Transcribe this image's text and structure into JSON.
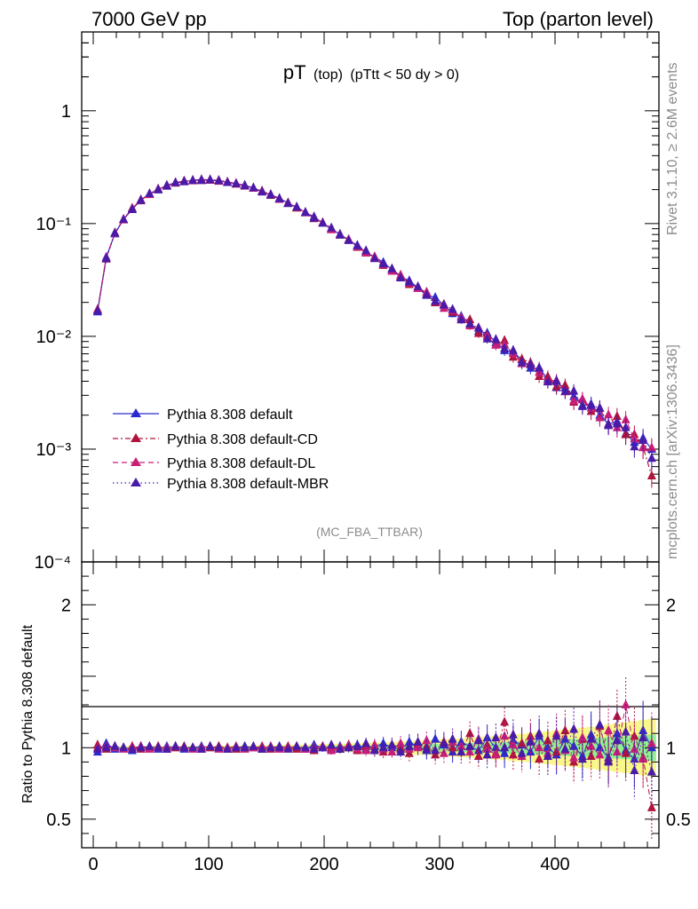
{
  "header": {
    "left": "7000 GeV pp",
    "right": "Top (parton level)"
  },
  "side_text": {
    "rivet": "Rivet 3.1.10, ≥ 2.6M events",
    "mcplots": "mcplots.cern.ch [arXiv:1306.3436]"
  },
  "chart_data": {
    "type": "line",
    "title_main": "pT",
    "title_sub": "(top)",
    "title_cut": "(pTtt < 50 dy > 0)",
    "analysis": "(MC_FBA_TTBAR)",
    "xlabel": "",
    "ylabel_ratio": "Ratio to Pythia 8.308 default",
    "xlim": [
      -10,
      490
    ],
    "ylim": [
      0.0001,
      5
    ],
    "ylog": true,
    "ratio_ylim": [
      0.3,
      2.3
    ],
    "x_ticks": [
      "0",
      "100",
      "200",
      "300",
      "400"
    ],
    "y_ticks": [
      "1",
      "10⁻¹",
      "10⁻²",
      "10⁻³",
      "10⁻⁴"
    ],
    "ratio_ticks": [
      "2",
      "1",
      "0.5"
    ],
    "x_bin_width": 7.5,
    "x_first": 3.75,
    "reference": [
      0.017,
      0.049,
      0.082,
      0.109,
      0.136,
      0.161,
      0.183,
      0.201,
      0.217,
      0.229,
      0.237,
      0.242,
      0.244,
      0.243,
      0.24,
      0.234,
      0.226,
      0.217,
      0.206,
      0.193,
      0.18,
      0.166,
      0.152,
      0.139,
      0.126,
      0.113,
      0.101,
      0.09,
      0.08,
      0.071,
      0.063,
      0.056,
      0.05,
      0.044,
      0.039,
      0.034,
      0.03,
      0.0266,
      0.0236,
      0.0209,
      0.0185,
      0.0164,
      0.0145,
      0.0128,
      0.0113,
      0.01,
      0.0088,
      0.0078,
      0.0069,
      0.0061,
      0.0054,
      0.0048,
      0.0042,
      0.0037,
      0.0033,
      0.0029,
      0.0026,
      0.0023,
      0.002,
      0.0018,
      0.0016,
      0.0014,
      0.00125,
      0.00112,
      0.001
    ],
    "series": [
      {
        "name": "Pythia 8.308 default",
        "color": "#2a2acf",
        "dash": "",
        "ratio": [
          0.97,
          1.03,
          0.99,
          1.0,
          0.98,
          1.01,
          1.0,
          0.99,
          1.01,
          1.0,
          0.99,
          1.0,
          1.01,
          1.0,
          1.0,
          0.99,
          1.0,
          1.01,
          1.0,
          0.99,
          1.0,
          1.01,
          1.0,
          1.0,
          0.99,
          1.02,
          1.0,
          0.99,
          1.01,
          1.0,
          1.02,
          0.99,
          1.01,
          1.03,
          1.0,
          0.99,
          1.04,
          1.01,
          0.98,
          1.06,
          1.02,
          0.97,
          1.04,
          1.01,
          0.98,
          1.07,
          1.0,
          0.96,
          1.05,
          1.02,
          0.97,
          1.08,
          1.0,
          0.95,
          1.06,
          1.01,
          0.94,
          1.09,
          1.0,
          0.93,
          1.1,
          0.98,
          0.92,
          1.12,
          1.0
        ]
      },
      {
        "name": "Pythia 8.308 default-CD",
        "color": "#b0143c",
        "dash": "6 3 2 3",
        "ratio": [
          1.02,
          0.99,
          1.01,
          1.0,
          1.01,
          0.99,
          1.0,
          1.01,
          0.99,
          1.0,
          1.01,
          1.0,
          0.99,
          1.0,
          1.01,
          1.0,
          0.99,
          1.0,
          1.0,
          1.01,
          0.99,
          1.0,
          1.01,
          0.99,
          1.0,
          0.98,
          1.01,
          1.0,
          0.99,
          1.02,
          0.98,
          1.01,
          0.99,
          0.97,
          1.02,
          1.0,
          0.96,
          1.03,
          1.01,
          0.95,
          1.04,
          1.0,
          0.97,
          1.1,
          0.94,
          1.02,
          0.96,
          1.18,
          0.95,
          1.03,
          1.08,
          0.92,
          1.05,
          0.97,
          1.12,
          0.9,
          1.06,
          0.94,
          1.15,
          0.91,
          1.22,
          0.96,
          1.08,
          0.93,
          0.58
        ]
      },
      {
        "name": "Pythia 8.308 default-DL",
        "color": "#c81e78",
        "dash": "6 4",
        "ratio": [
          1.0,
          1.01,
          1.0,
          0.99,
          1.0,
          1.01,
          0.99,
          1.0,
          1.0,
          1.01,
          1.0,
          0.99,
          1.0,
          1.01,
          0.99,
          1.0,
          1.01,
          0.99,
          1.0,
          1.0,
          1.01,
          0.99,
          1.0,
          1.01,
          0.99,
          1.0,
          1.01,
          0.98,
          1.0,
          1.01,
          0.99,
          0.98,
          1.02,
          0.99,
          0.97,
          1.03,
          0.99,
          1.0,
          1.05,
          0.98,
          0.96,
          1.04,
          1.01,
          0.97,
          1.06,
          0.99,
          0.95,
          1.08,
          1.02,
          0.94,
          1.05,
          1.0,
          0.96,
          1.1,
          0.98,
          0.93,
          1.07,
          1.01,
          0.95,
          1.12,
          0.97,
          1.3,
          0.99,
          0.92,
          1.03
        ]
      },
      {
        "name": "Pythia 8.308 default-MBR",
        "color": "#4a1aa8",
        "dash": "1.5 3",
        "ratio": [
          0.99,
          1.0,
          1.01,
          1.0,
          0.99,
          1.0,
          1.01,
          1.0,
          0.99,
          1.01,
          1.0,
          1.0,
          0.99,
          1.01,
          1.0,
          0.99,
          1.0,
          1.0,
          1.01,
          0.99,
          1.0,
          1.0,
          0.99,
          1.01,
          1.0,
          0.99,
          1.0,
          1.02,
          0.99,
          1.0,
          1.01,
          1.03,
          0.98,
          1.0,
          1.02,
          0.97,
          1.01,
          1.04,
          0.99,
          0.98,
          1.03,
          1.06,
          0.97,
          1.01,
          1.05,
          0.95,
          1.07,
          1.0,
          1.09,
          0.96,
          1.04,
          1.1,
          0.94,
          1.08,
          0.99,
          1.13,
          0.92,
          1.06,
          1.16,
          0.9,
          1.05,
          1.11,
          0.84,
          1.07,
          0.83
        ]
      }
    ]
  }
}
